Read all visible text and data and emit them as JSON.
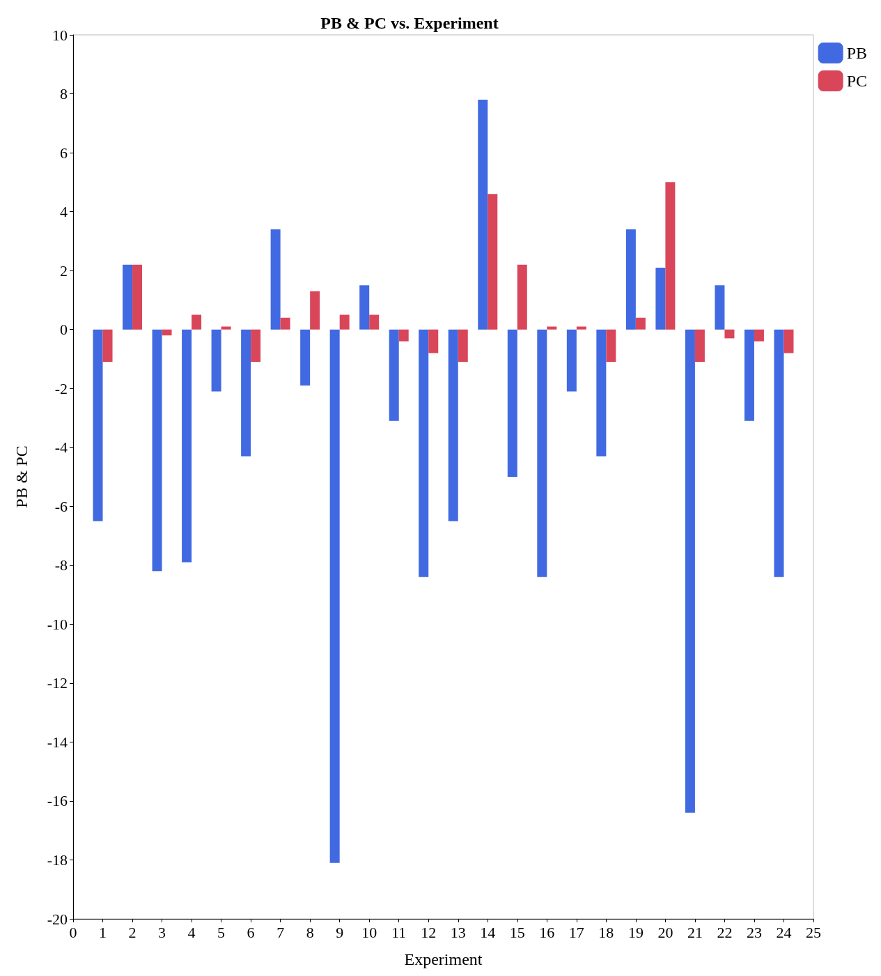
{
  "chart_data": {
    "type": "bar",
    "title": "PB & PC vs. Experiment",
    "xlabel": "Experiment",
    "ylabel": "PB & PC",
    "x": [
      1,
      2,
      3,
      4,
      5,
      6,
      7,
      8,
      9,
      10,
      11,
      12,
      13,
      14,
      15,
      16,
      17,
      18,
      19,
      20,
      21,
      22,
      23,
      24
    ],
    "series": [
      {
        "name": "PB",
        "color": "#4169e1",
        "values": [
          -6.5,
          2.2,
          -8.2,
          -7.9,
          -2.1,
          -4.3,
          3.4,
          -1.9,
          -18.1,
          1.5,
          -3.1,
          -8.4,
          -6.5,
          7.8,
          -5.0,
          -8.4,
          -2.1,
          -4.3,
          3.4,
          2.1,
          -16.4,
          1.5,
          -3.1,
          -8.4
        ]
      },
      {
        "name": "PC",
        "color": "#d9465a",
        "values": [
          -1.1,
          2.2,
          -0.2,
          0.5,
          0.1,
          -1.1,
          0.4,
          1.3,
          0.5,
          0.5,
          -0.4,
          -0.8,
          -1.1,
          4.6,
          2.2,
          0.1,
          0.1,
          -1.1,
          0.4,
          5.0,
          -1.1,
          -0.3,
          -0.4,
          -0.8
        ]
      }
    ],
    "xlim": [
      0,
      25
    ],
    "xticks": [
      0,
      1,
      2,
      3,
      4,
      5,
      6,
      7,
      8,
      9,
      10,
      11,
      12,
      13,
      14,
      15,
      16,
      17,
      18,
      19,
      20,
      21,
      22,
      23,
      24,
      25
    ],
    "ylim": [
      -20,
      10
    ],
    "yticks": [
      -20,
      -18,
      -16,
      -14,
      -12,
      -10,
      -8,
      -6,
      -4,
      -2,
      0,
      2,
      4,
      6,
      8,
      10
    ],
    "grid": false,
    "legend": "top right"
  }
}
